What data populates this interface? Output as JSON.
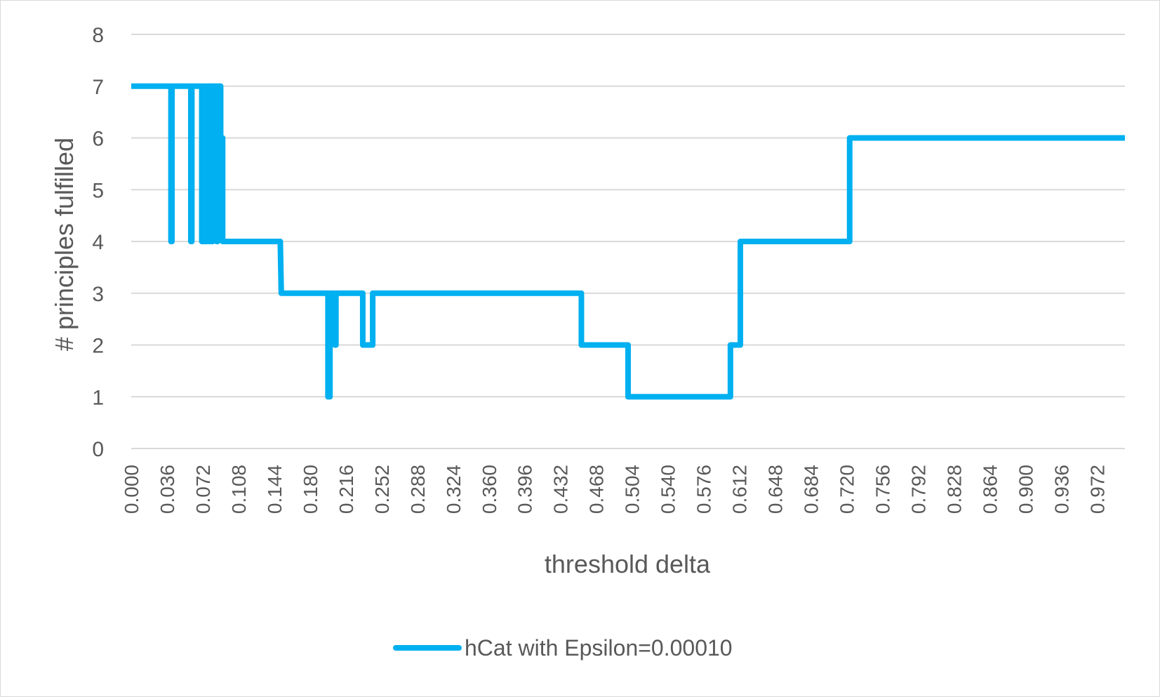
{
  "chart_data": {
    "type": "line",
    "title": "",
    "xlabel": "threshold delta",
    "ylabel": "# principles fulfilled",
    "xlim": [
      0,
      1
    ],
    "ylim": [
      0,
      8
    ],
    "y_ticks": [
      0,
      1,
      2,
      3,
      4,
      5,
      6,
      7,
      8
    ],
    "x_tick_labels": [
      "0.000",
      "0.036",
      "0.072",
      "0.108",
      "0.144",
      "0.180",
      "0.216",
      "0.252",
      "0.288",
      "0.324",
      "0.360",
      "0.396",
      "0.432",
      "0.468",
      "0.504",
      "0.540",
      "0.576",
      "0.612",
      "0.648",
      "0.684",
      "0.720",
      "0.756",
      "0.792",
      "0.828",
      "0.864",
      "0.900",
      "0.936",
      "0.972"
    ],
    "x_tick_values": [
      0,
      0.036,
      0.072,
      0.108,
      0.144,
      0.18,
      0.216,
      0.252,
      0.288,
      0.324,
      0.36,
      0.396,
      0.432,
      0.468,
      0.504,
      0.54,
      0.576,
      0.612,
      0.648,
      0.684,
      0.72,
      0.756,
      0.792,
      0.828,
      0.864,
      0.9,
      0.936,
      0.972
    ],
    "grid": true,
    "legend_position": "bottom",
    "series": [
      {
        "name": "hCat with Epsilon=0.00010",
        "color": "#00b0f0",
        "points": [
          [
            0.0,
            7
          ],
          [
            0.04,
            7
          ],
          [
            0.04,
            4
          ],
          [
            0.041,
            4
          ],
          [
            0.041,
            7
          ],
          [
            0.06,
            7
          ],
          [
            0.06,
            4
          ],
          [
            0.061,
            4
          ],
          [
            0.061,
            7
          ],
          [
            0.071,
            7
          ],
          [
            0.071,
            4
          ],
          [
            0.073,
            4
          ],
          [
            0.073,
            7
          ],
          [
            0.074,
            7
          ],
          [
            0.074,
            4
          ],
          [
            0.076,
            4
          ],
          [
            0.076,
            7
          ],
          [
            0.078,
            7
          ],
          [
            0.078,
            4
          ],
          [
            0.079,
            4
          ],
          [
            0.079,
            7
          ],
          [
            0.081,
            7
          ],
          [
            0.081,
            4
          ],
          [
            0.082,
            4
          ],
          [
            0.082,
            7
          ],
          [
            0.086,
            7
          ],
          [
            0.086,
            4
          ],
          [
            0.087,
            4
          ],
          [
            0.087,
            7
          ],
          [
            0.09,
            7
          ],
          [
            0.09,
            6
          ],
          [
            0.092,
            6
          ],
          [
            0.092,
            4
          ],
          [
            0.15,
            4
          ],
          [
            0.151,
            3
          ],
          [
            0.198,
            3
          ],
          [
            0.198,
            1
          ],
          [
            0.2,
            1
          ],
          [
            0.2,
            3
          ],
          [
            0.205,
            3
          ],
          [
            0.205,
            2
          ],
          [
            0.206,
            2
          ],
          [
            0.206,
            3
          ],
          [
            0.233,
            3
          ],
          [
            0.233,
            2
          ],
          [
            0.243,
            2
          ],
          [
            0.243,
            3
          ],
          [
            0.453,
            3
          ],
          [
            0.453,
            2
          ],
          [
            0.5,
            2
          ],
          [
            0.5,
            1
          ],
          [
            0.603,
            1
          ],
          [
            0.603,
            2
          ],
          [
            0.613,
            2
          ],
          [
            0.613,
            4
          ],
          [
            0.723,
            4
          ],
          [
            0.723,
            6
          ],
          [
            1.0,
            6
          ]
        ]
      }
    ]
  }
}
